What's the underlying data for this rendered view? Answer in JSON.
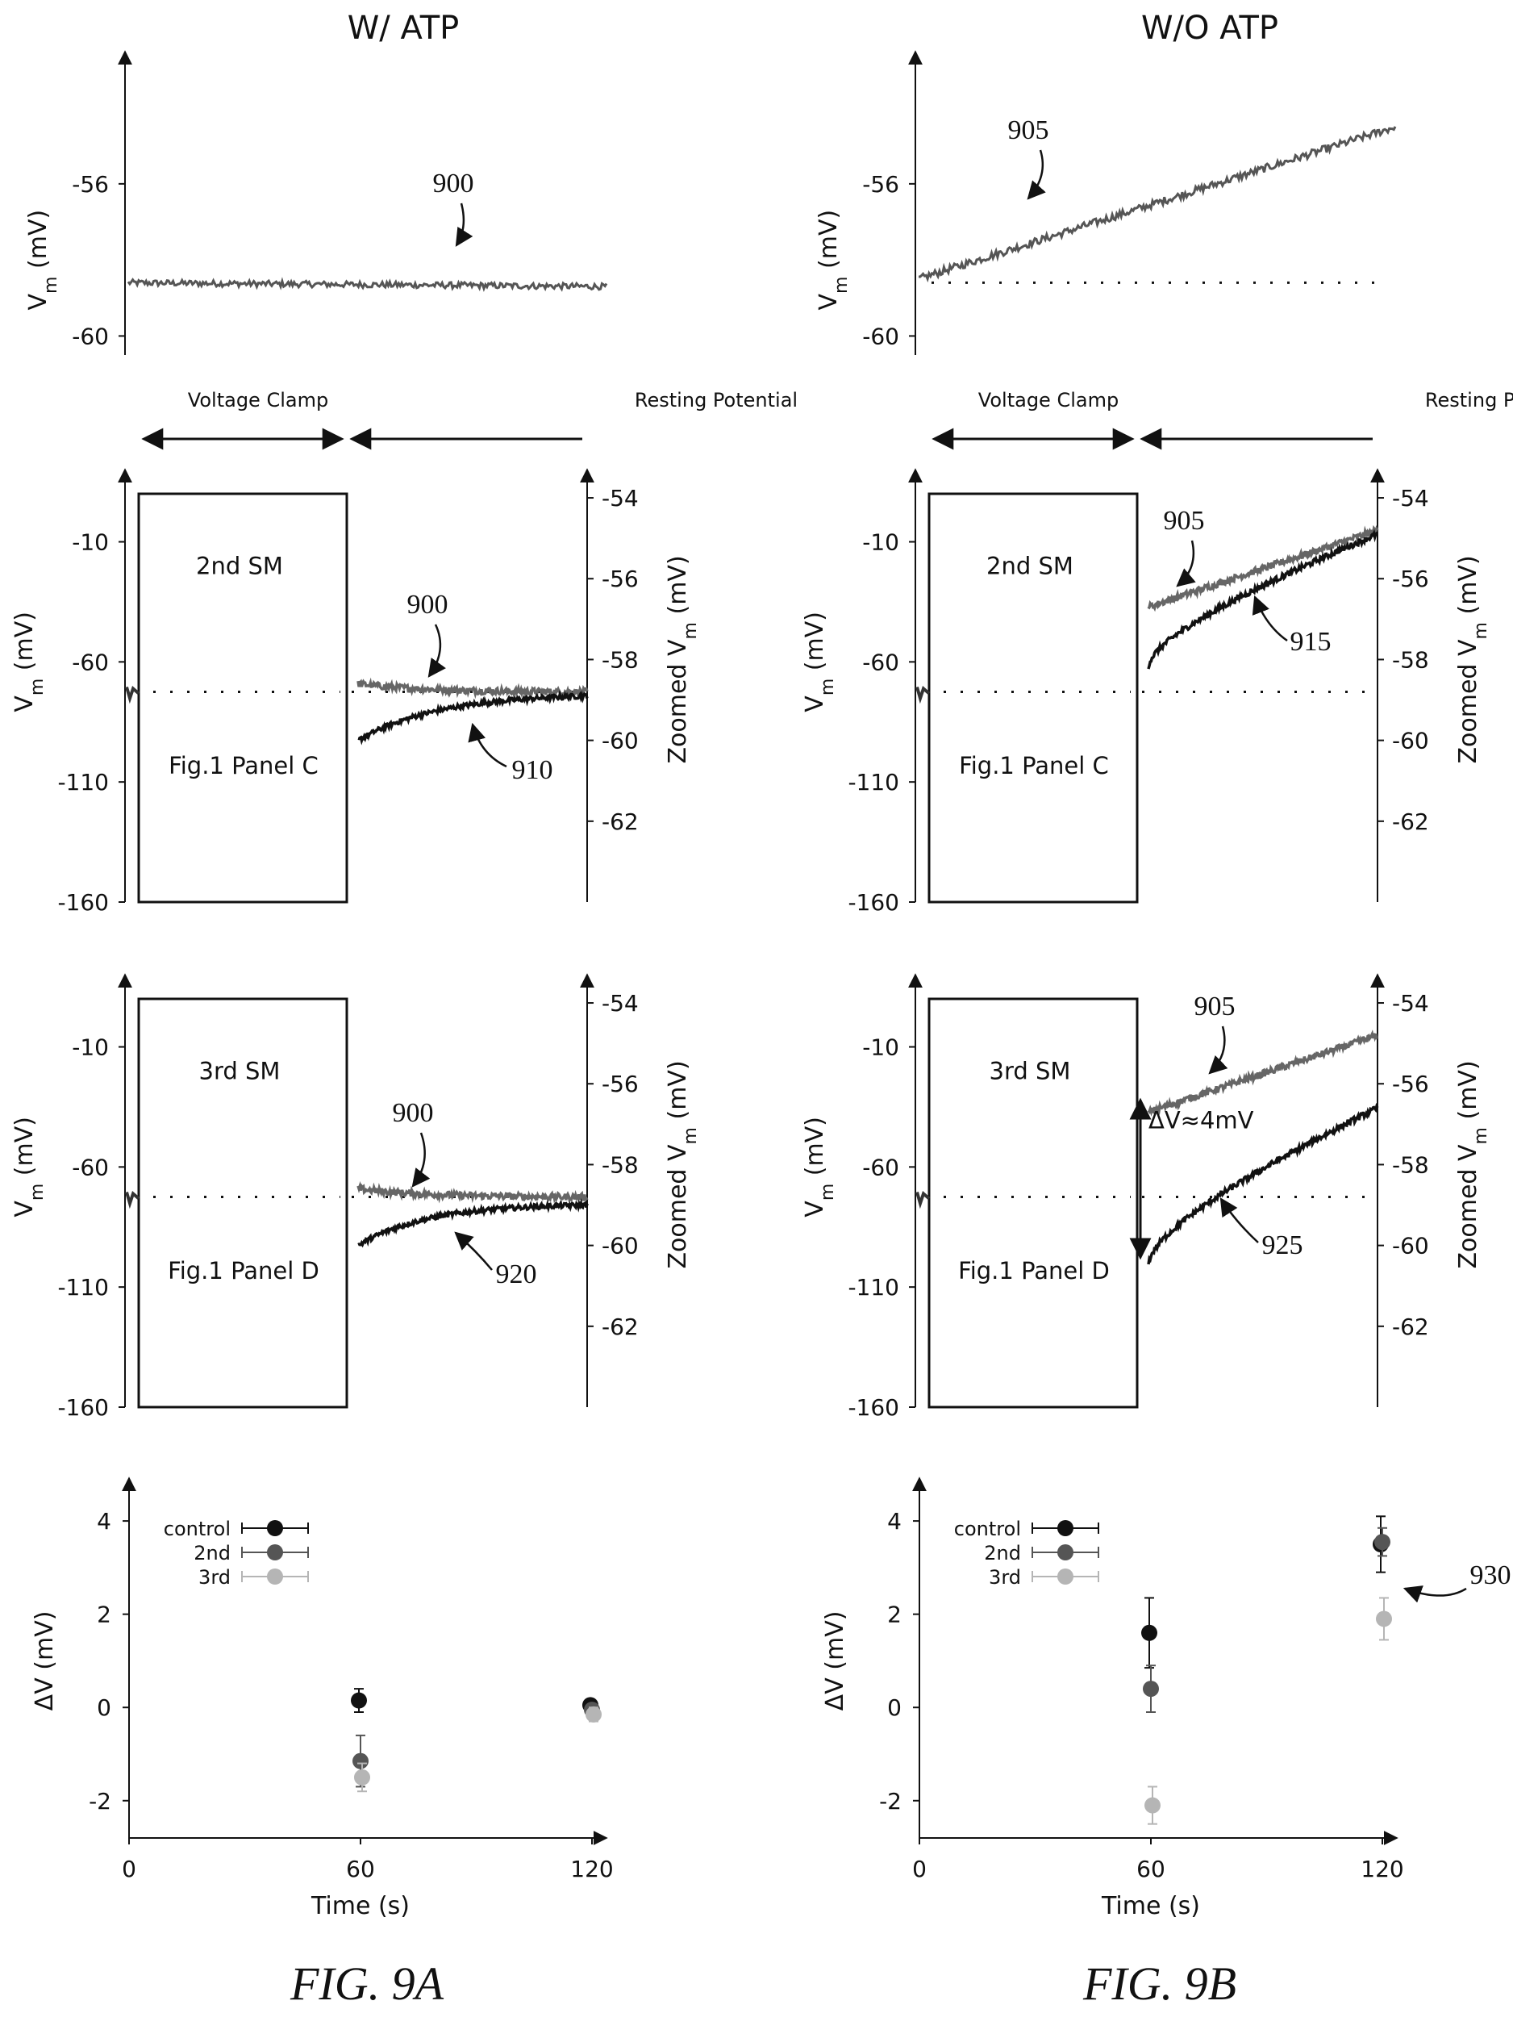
{
  "chart_data": [
    {
      "id": "A-top",
      "panel": "A",
      "header": "W/ ATP",
      "type": "line",
      "ylabel": "Vm (mV)",
      "ylim": [
        -60.5,
        -53.5
      ],
      "yticks": [
        "-56",
        "-60"
      ],
      "trace": {
        "id": "900",
        "color": "#555555",
        "start": -58.6,
        "end": -58.7,
        "noise": 0.08
      },
      "callouts": [
        {
          "label": "900"
        }
      ]
    },
    {
      "id": "B-top",
      "panel": "B",
      "header": "W/O ATP",
      "type": "line",
      "ylabel": "Vm (mV)",
      "ylim": [
        -60.5,
        -53.5
      ],
      "yticks": [
        "-56",
        "-60"
      ],
      "baseline": -58.6,
      "trace": {
        "id": "905",
        "color": "#555555",
        "start": -58.5,
        "end": -54.5,
        "noise": 0.1
      },
      "callouts": [
        {
          "label": "905"
        }
      ]
    },
    {
      "id": "A-mid",
      "panel": "A",
      "type": "line",
      "sections": [
        "Voltage Clamp",
        "Resting Potential"
      ],
      "box_label_top": "2nd SM",
      "box_label_bottom": "Fig.1 Panel C",
      "ylabel_left": "Vm (mV)",
      "ylabel_right": "Zoomed Vm (mV)",
      "left_ticks": [
        "-10",
        "-60",
        "-110",
        "-160"
      ],
      "right_ticks": [
        "-54",
        "-56",
        "-58",
        "-60",
        "-62"
      ],
      "right_ylim": [
        -64,
        -53.5
      ],
      "baseline": -58.8,
      "traces": [
        {
          "id": "900",
          "color": "#666666",
          "start": -58.6,
          "end": -58.8,
          "tau": 0.3,
          "noise": 0.08
        },
        {
          "id": "910",
          "color": "#111111",
          "start": -60.0,
          "end": -58.9,
          "tau": 0.35,
          "noise": 0.06
        }
      ],
      "callouts": [
        {
          "label": "900"
        },
        {
          "label": "910"
        }
      ]
    },
    {
      "id": "B-mid",
      "panel": "B",
      "type": "line",
      "sections": [
        "Voltage Clamp",
        "Resting Potential"
      ],
      "box_label_top": "2nd SM",
      "box_label_bottom": "Fig.1 Panel C",
      "ylabel_left": "Vm (mV)",
      "ylabel_right": "Zoomed Vm (mV)",
      "left_ticks": [
        "-10",
        "-60",
        "-110",
        "-160"
      ],
      "right_ticks": [
        "-54",
        "-56",
        "-58",
        "-60",
        "-62"
      ],
      "right_ylim": [
        -64,
        -53.5
      ],
      "baseline": -58.8,
      "traces": [
        {
          "id": "905",
          "color": "#666666",
          "start": -56.7,
          "end": -54.8,
          "shape": "linear",
          "noise": 0.08
        },
        {
          "id": "915",
          "color": "#111111",
          "start": -58.2,
          "end": -54.9,
          "shape": "sqrt",
          "noise": 0.07
        }
      ],
      "callouts": [
        {
          "label": "905"
        },
        {
          "label": "915"
        }
      ]
    },
    {
      "id": "A-low",
      "panel": "A",
      "type": "line",
      "box_label_top": "3rd SM",
      "box_label_bottom": "Fig.1 Panel D",
      "ylabel_left": "Vm (mV)",
      "ylabel_right": "Zoomed Vm (mV)",
      "left_ticks": [
        "-10",
        "-60",
        "-110",
        "-160"
      ],
      "right_ticks": [
        "-54",
        "-56",
        "-58",
        "-60",
        "-62"
      ],
      "right_ylim": [
        -64,
        -53.5
      ],
      "baseline": -58.8,
      "traces": [
        {
          "id": "900",
          "color": "#666666",
          "start": -58.6,
          "end": -58.8,
          "tau": 0.3,
          "noise": 0.08
        },
        {
          "id": "920",
          "color": "#111111",
          "start": -60.0,
          "end": -59.0,
          "tau": 0.3,
          "noise": 0.06
        }
      ],
      "callouts": [
        {
          "label": "900"
        },
        {
          "label": "920"
        }
      ]
    },
    {
      "id": "B-low",
      "panel": "B",
      "type": "line",
      "box_label_top": "3rd SM",
      "box_label_bottom": "Fig.1 Panel D",
      "ylabel_left": "Vm (mV)",
      "ylabel_right": "Zoomed Vm (mV)",
      "left_ticks": [
        "-10",
        "-60",
        "-110",
        "-160"
      ],
      "right_ticks": [
        "-54",
        "-56",
        "-58",
        "-60",
        "-62"
      ],
      "right_ylim": [
        -64,
        -53.5
      ],
      "baseline": -58.8,
      "annotation": "ΔV≈4mV",
      "traces": [
        {
          "id": "905",
          "color": "#666666",
          "start": -56.7,
          "end": -54.8,
          "shape": "linear",
          "noise": 0.08
        },
        {
          "id": "925",
          "color": "#111111",
          "start": -60.5,
          "end": -56.6,
          "shape": "sqrt",
          "noise": 0.07
        }
      ],
      "callouts": [
        {
          "label": "905"
        },
        {
          "label": "925"
        }
      ]
    },
    {
      "id": "A-bottom",
      "panel": "A",
      "type": "scatter",
      "xlabel": "Time (s)",
      "ylabel": "ΔV (mV)",
      "xlim": [
        0,
        120
      ],
      "ylim": [
        -2.8,
        4.4
      ],
      "xticks": [
        0,
        60,
        120
      ],
      "yticks": [
        4,
        2,
        0,
        -2
      ],
      "series": [
        {
          "name": "control",
          "color": "#111111",
          "points": [
            {
              "x": 60,
              "y": 0.15,
              "err": 0.25
            },
            {
              "x": 120,
              "y": 0.05,
              "err": 0.1
            }
          ]
        },
        {
          "name": "2nd",
          "color": "#555555",
          "points": [
            {
              "x": 60,
              "y": -1.15,
              "err": 0.55
            },
            {
              "x": 120,
              "y": -0.05,
              "err": 0.12
            }
          ]
        },
        {
          "name": "3rd",
          "color": "#b5b5b5",
          "points": [
            {
              "x": 60,
              "y": -1.5,
              "err": 0.3
            },
            {
              "x": 120,
              "y": -0.15,
              "err": 0.15
            }
          ]
        }
      ]
    },
    {
      "id": "B-bottom",
      "panel": "B",
      "type": "scatter",
      "xlabel": "Time (s)",
      "ylabel": "ΔV (mV)",
      "xlim": [
        0,
        120
      ],
      "ylim": [
        -2.8,
        4.4
      ],
      "xticks": [
        0,
        60,
        120
      ],
      "yticks": [
        4,
        2,
        0,
        -2
      ],
      "callout": "930",
      "series": [
        {
          "name": "control",
          "color": "#111111",
          "points": [
            {
              "x": 60,
              "y": 1.6,
              "err": 0.75
            },
            {
              "x": 120,
              "y": 3.5,
              "err": 0.6
            }
          ]
        },
        {
          "name": "2nd",
          "color": "#555555",
          "points": [
            {
              "x": 60,
              "y": 0.4,
              "err": 0.5
            },
            {
              "x": 120,
              "y": 3.55,
              "err": 0.3
            }
          ]
        },
        {
          "name": "3rd",
          "color": "#b5b5b5",
          "points": [
            {
              "x": 60,
              "y": -2.1,
              "err": 0.4
            },
            {
              "x": 120,
              "y": 1.9,
              "err": 0.45
            }
          ]
        }
      ]
    }
  ],
  "captions": {
    "A": "FIG. 9A",
    "B": "FIG. 9B"
  }
}
